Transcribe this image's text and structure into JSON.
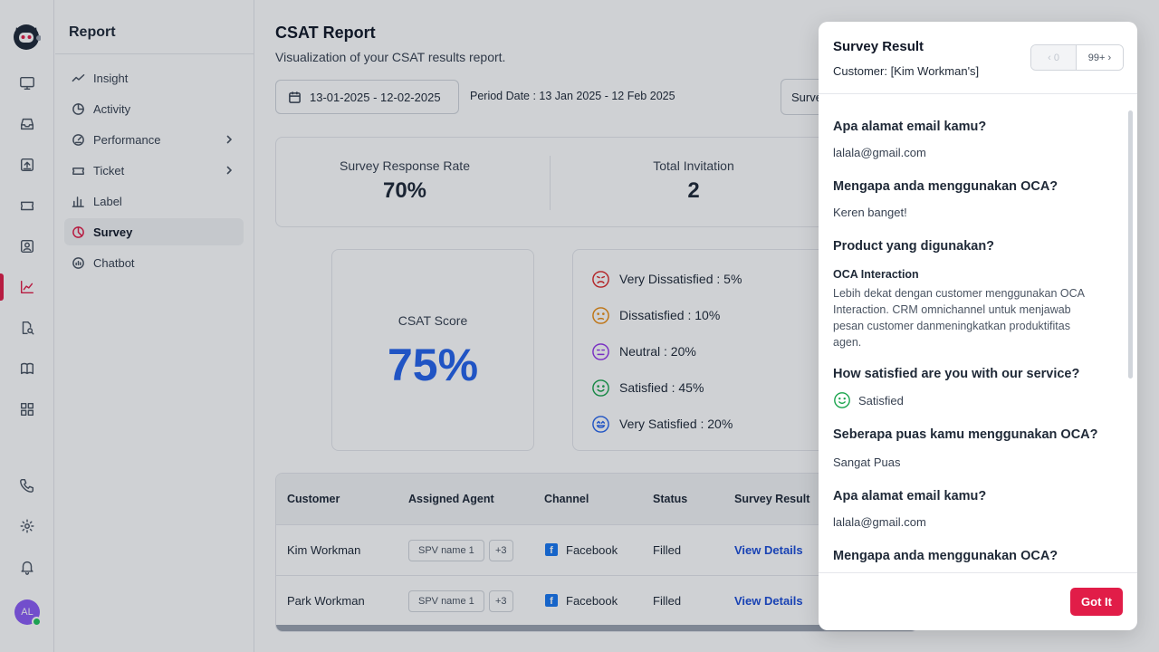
{
  "sidebar": {
    "title": "Report",
    "items": [
      {
        "label": "Insight"
      },
      {
        "label": "Activity"
      },
      {
        "label": "Performance"
      },
      {
        "label": "Ticket"
      },
      {
        "label": "Label"
      },
      {
        "label": "Survey"
      },
      {
        "label": "Chatbot"
      }
    ]
  },
  "user": {
    "initials": "AL"
  },
  "page": {
    "title": "CSAT Report",
    "subtitle": "Visualization of your CSAT results report.",
    "date_range": "13-01-2025 - 12-02-2025",
    "period": "Period Date : 13 Jan 2025 - 12 Feb 2025",
    "survey_select": "Surve"
  },
  "stats": {
    "response_rate": {
      "label": "Survey Response Rate",
      "value": "70%"
    },
    "total_invitation": {
      "label": "Total Invitation",
      "value": "2"
    }
  },
  "csat": {
    "label": "CSAT Score",
    "value": "75%"
  },
  "distribution": [
    {
      "label": "Very Dissatisfied : 5%",
      "color": "#dc2626",
      "icon": "very-dissatisfied-face-icon"
    },
    {
      "label": "Dissatisfied : 10%",
      "color": "#ea8a0c",
      "icon": "dissatisfied-face-icon"
    },
    {
      "label": "Neutral : 20%",
      "color": "#9333ea",
      "icon": "neutral-face-icon"
    },
    {
      "label": "Satisfied : 45%",
      "color": "#16a34a",
      "icon": "satisfied-face-icon"
    },
    {
      "label": "Very Satisfied : 20%",
      "color": "#2563eb",
      "icon": "very-satisfied-face-icon"
    }
  ],
  "table": {
    "headers": [
      "Customer",
      "Assigned Agent",
      "Channel",
      "Status",
      "Survey Result"
    ],
    "rows": [
      {
        "customer": "Kim Workman",
        "agent": "SPV name 1",
        "more": "+3",
        "channel": "Facebook",
        "status": "Filled",
        "result": "View Details"
      },
      {
        "customer": "Park Workman",
        "agent": "SPV name 1",
        "more": "+3",
        "channel": "Facebook",
        "status": "Filled",
        "result": "View Details"
      }
    ]
  },
  "panel": {
    "title": "Survey Result",
    "customer": "Customer: [Kim Workman's]",
    "pager_prev": "0",
    "pager_next": "99+",
    "qa": [
      {
        "q": "Apa alamat email kamu?",
        "a": "lalala@gmail.com"
      },
      {
        "q": "Mengapa anda menggunakan OCA?",
        "a": "Keren banget!"
      },
      {
        "q": "Product yang digunakan?",
        "product_name": "OCA Interaction",
        "product_desc": "Lebih dekat dengan customer menggunakan OCA Interaction. CRM omnichannel untuk menjawab pesan customer danmeningkatkan produktifitas agen."
      },
      {
        "q": "How satisfied are you with our service?",
        "a": "Satisfied"
      },
      {
        "q": "Seberapa puas kamu menggunakan OCA?",
        "a": "Sangat Puas"
      },
      {
        "q": "Apa alamat email kamu?",
        "a": "lalala@gmail.com"
      },
      {
        "q": "Mengapa anda menggunakan OCA?"
      }
    ],
    "button": "Got It"
  },
  "colors": {
    "accent": "#e11d48",
    "link": "#1d4ed8",
    "csat": "#2563eb"
  }
}
